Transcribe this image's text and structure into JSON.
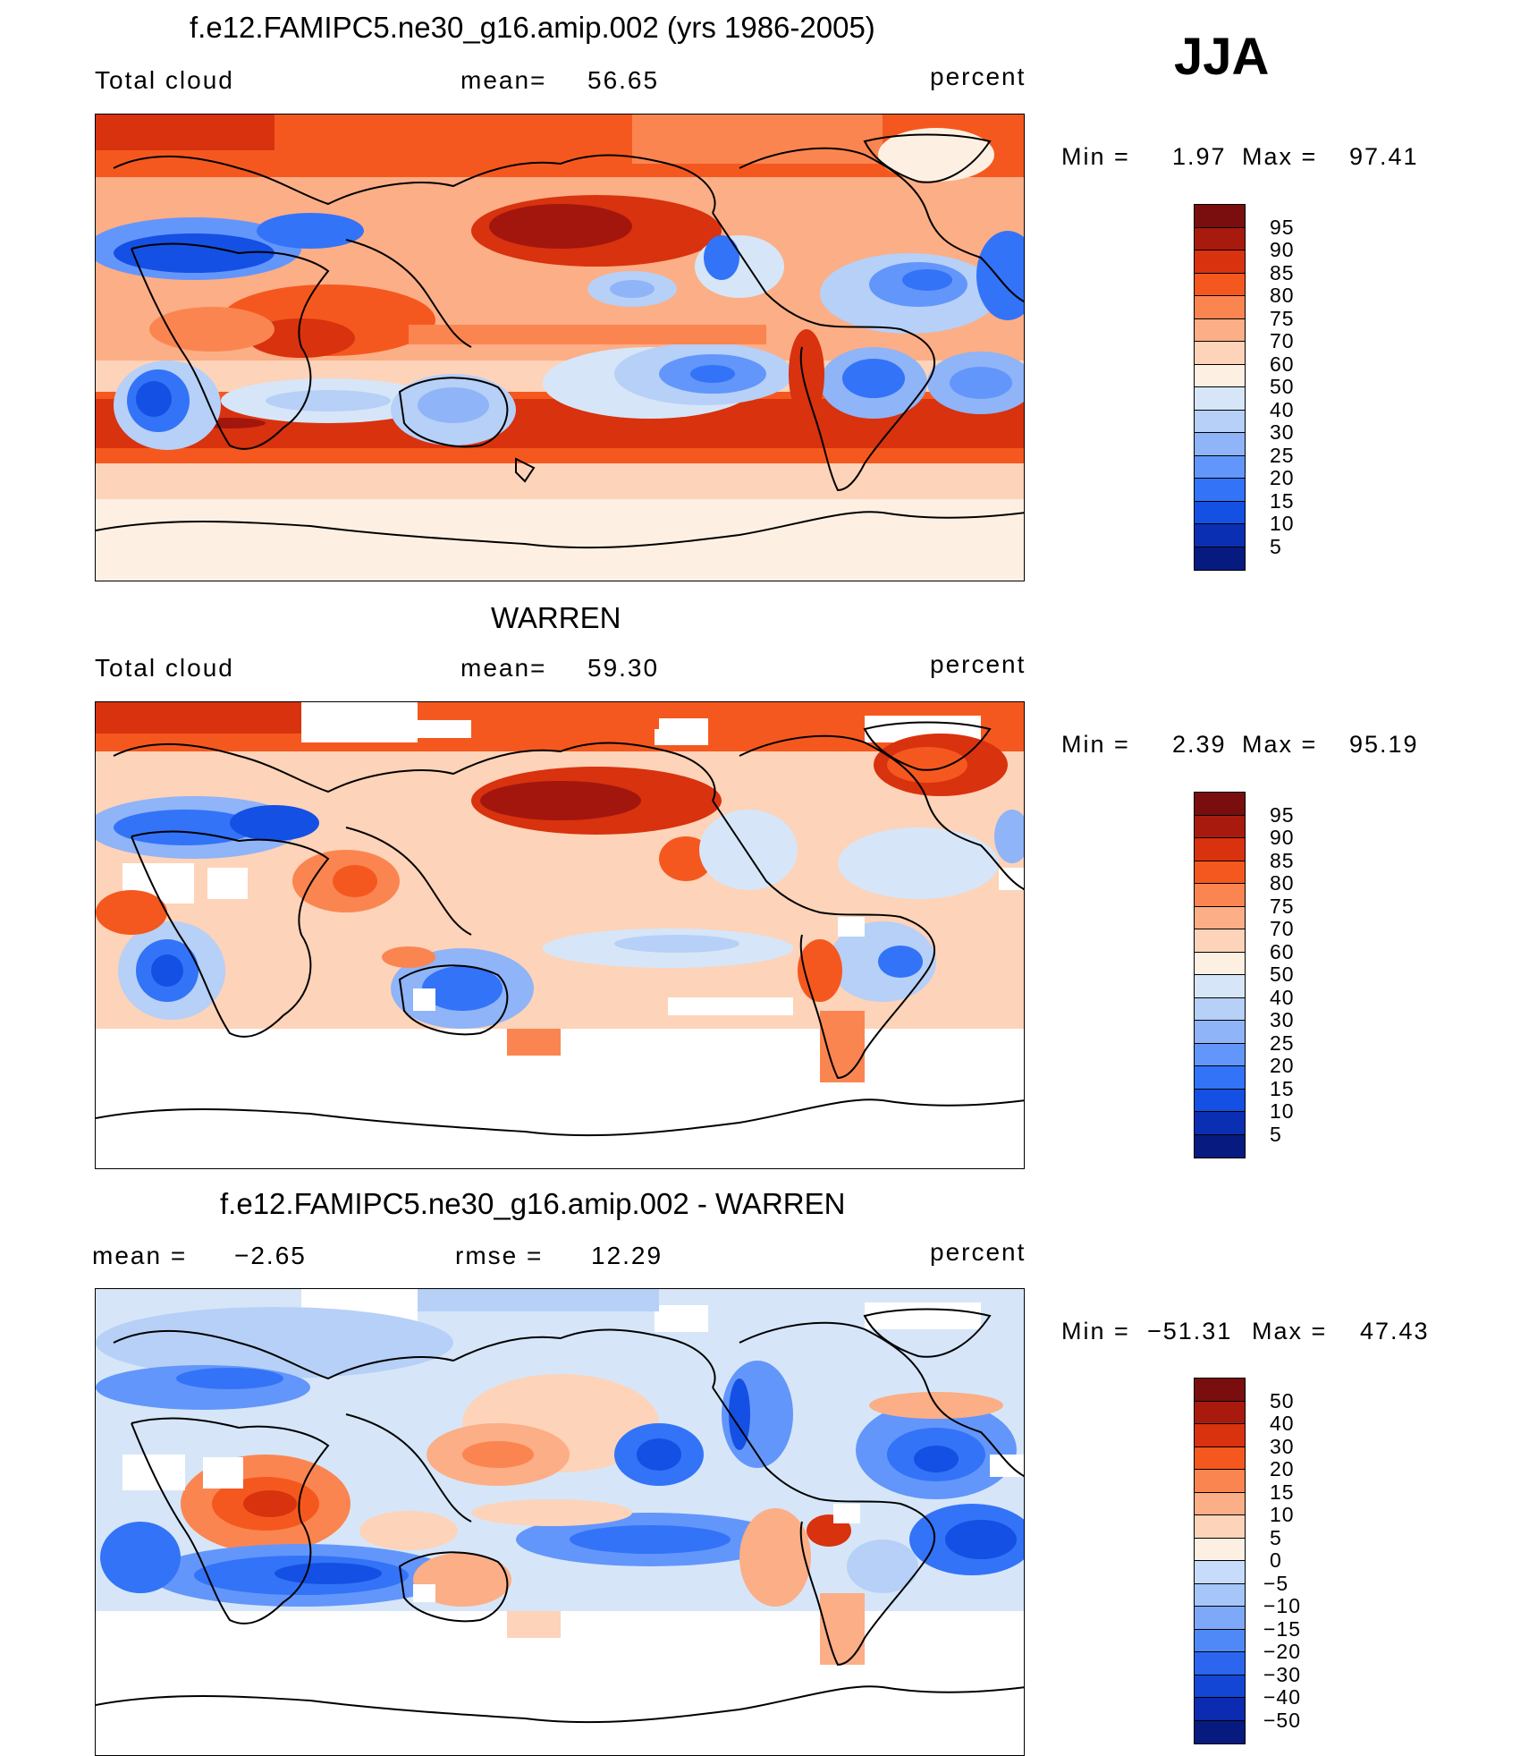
{
  "season": "JJA",
  "units": "percent",
  "panels": [
    {
      "title": "f.e12.FAMIPC5.ne30_g16.amip.002 (yrs 1986-2005)",
      "variable": "Total cloud",
      "stat_left": "mean=",
      "stat_left_value": "56.65",
      "stat_mid": "",
      "stat_mid_value": "",
      "min_label": "Min =",
      "min_value": "1.97",
      "max_label": "Max =",
      "max_value": "97.41",
      "colorbar": {
        "colors": [
          "#7a0d0d",
          "#a91a0e",
          "#d8320e",
          "#f5581f",
          "#fb8550",
          "#fcae86",
          "#fdd3b9",
          "#fdf0e2",
          "#d6e6f8",
          "#b6d0f7",
          "#8fb4f7",
          "#6396fb",
          "#3373f7",
          "#1450e3",
          "#0a2fb3",
          "#061a80"
        ],
        "labels": [
          "95",
          "90",
          "85",
          "80",
          "75",
          "70",
          "60",
          "50",
          "40",
          "30",
          "25",
          "20",
          "15",
          "10",
          "5"
        ]
      }
    },
    {
      "title": "WARREN",
      "variable": "Total cloud",
      "stat_left": "mean=",
      "stat_left_value": "59.30",
      "stat_mid": "",
      "stat_mid_value": "",
      "min_label": "Min =",
      "min_value": "2.39",
      "max_label": "Max =",
      "max_value": "95.19",
      "colorbar": {
        "colors": [
          "#7a0d0d",
          "#a91a0e",
          "#d8320e",
          "#f5581f",
          "#fb8550",
          "#fcae86",
          "#fdd3b9",
          "#fdf0e2",
          "#d6e6f8",
          "#b6d0f7",
          "#8fb4f7",
          "#6396fb",
          "#3373f7",
          "#1450e3",
          "#0a2fb3",
          "#061a80"
        ],
        "labels": [
          "95",
          "90",
          "85",
          "80",
          "75",
          "70",
          "60",
          "50",
          "40",
          "30",
          "25",
          "20",
          "15",
          "10",
          "5"
        ]
      }
    },
    {
      "title": "f.e12.FAMIPC5.ne30_g16.amip.002 - WARREN",
      "variable": "",
      "stat_left": "mean =",
      "stat_left_value": "−2.65",
      "stat_mid": "rmse =",
      "stat_mid_value": "12.29",
      "min_label": "Min =",
      "min_value": "−51.31",
      "max_label": "Max =",
      "max_value": "47.43",
      "colorbar": {
        "colors": [
          "#7a0d0d",
          "#a91a0e",
          "#d8320e",
          "#f5581f",
          "#fb8550",
          "#fcae86",
          "#fdd3b9",
          "#fdf0e2",
          "#c6dcfa",
          "#a6c5f8",
          "#7ea9f8",
          "#4f89f7",
          "#2d66ee",
          "#1446d6",
          "#0b2bb0",
          "#061a80"
        ],
        "labels": [
          "50",
          "40",
          "30",
          "20",
          "15",
          "10",
          "5",
          "0",
          "−5",
          "−10",
          "−15",
          "−20",
          "−30",
          "−40",
          "−50"
        ]
      }
    }
  ],
  "map_colors": {
    "deep_red": "#a3160e",
    "red": "#d8320e",
    "orange": "#f5581f",
    "salmon": "#fb8550",
    "peach": "#fcae86",
    "light_peach": "#fdd3b9",
    "cream": "#fdf0e2",
    "pale_blue": "#d6e6f8",
    "light_blue": "#b6d0f7",
    "mid_blue": "#6396fb",
    "blue": "#3373f7",
    "dark_blue": "#1450e3",
    "missing": "#ffffff",
    "coastline": "#000000"
  }
}
